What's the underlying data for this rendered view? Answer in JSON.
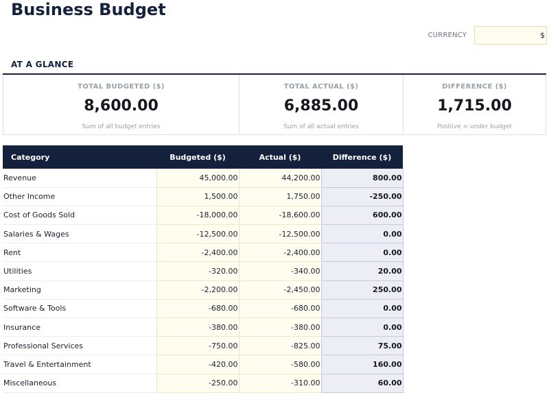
{
  "title": "Business Budget",
  "currency": {
    "label": "CURRENCY",
    "value": "$"
  },
  "at_a_glance": {
    "heading": "AT A GLANCE",
    "cards": [
      {
        "label": "TOTAL BUDGETED ($)",
        "value": "8,600.00",
        "note": "Sum of all budget entries"
      },
      {
        "label": "TOTAL ACTUAL ($)",
        "value": "6,885.00",
        "note": "Sum of all actual entries"
      },
      {
        "label": "DIFFERENCE ($)",
        "value": "1,715.00",
        "note": "Positive = under budget"
      }
    ]
  },
  "table": {
    "headers": [
      "Category",
      "Budgeted ($)",
      "Actual ($)",
      "Difference ($)"
    ],
    "rows": [
      {
        "category": "Revenue",
        "budgeted": "45,000.00",
        "actual": "44,200.00",
        "difference": "800.00"
      },
      {
        "category": "Other Income",
        "budgeted": "1,500.00",
        "actual": "1,750.00",
        "difference": "-250.00"
      },
      {
        "category": "Cost of Goods Sold",
        "budgeted": "-18,000.00",
        "actual": "-18,600.00",
        "difference": "600.00"
      },
      {
        "category": "Salaries & Wages",
        "budgeted": "-12,500.00",
        "actual": "-12,500.00",
        "difference": "0.00"
      },
      {
        "category": "Rent",
        "budgeted": "-2,400.00",
        "actual": "-2,400.00",
        "difference": "0.00"
      },
      {
        "category": "Utilities",
        "budgeted": "-320.00",
        "actual": "-340.00",
        "difference": "20.00"
      },
      {
        "category": "Marketing",
        "budgeted": "-2,200.00",
        "actual": "-2,450.00",
        "difference": "250.00"
      },
      {
        "category": "Software & Tools",
        "budgeted": "-680.00",
        "actual": "-680.00",
        "difference": "0.00"
      },
      {
        "category": "Insurance",
        "budgeted": "-380.00",
        "actual": "-380.00",
        "difference": "0.00"
      },
      {
        "category": "Professional Services",
        "budgeted": "-750.00",
        "actual": "-825.00",
        "difference": "75.00"
      },
      {
        "category": "Travel & Entertainment",
        "budgeted": "-420.00",
        "actual": "-580.00",
        "difference": "160.00"
      },
      {
        "category": "Miscellaneous",
        "budgeted": "-250.00",
        "actual": "-310.00",
        "difference": "60.00"
      }
    ]
  },
  "colors": {
    "navy": "#14213d",
    "input_cell_bg": "#fffcf0",
    "difference_cell_bg": "#edeef5"
  }
}
